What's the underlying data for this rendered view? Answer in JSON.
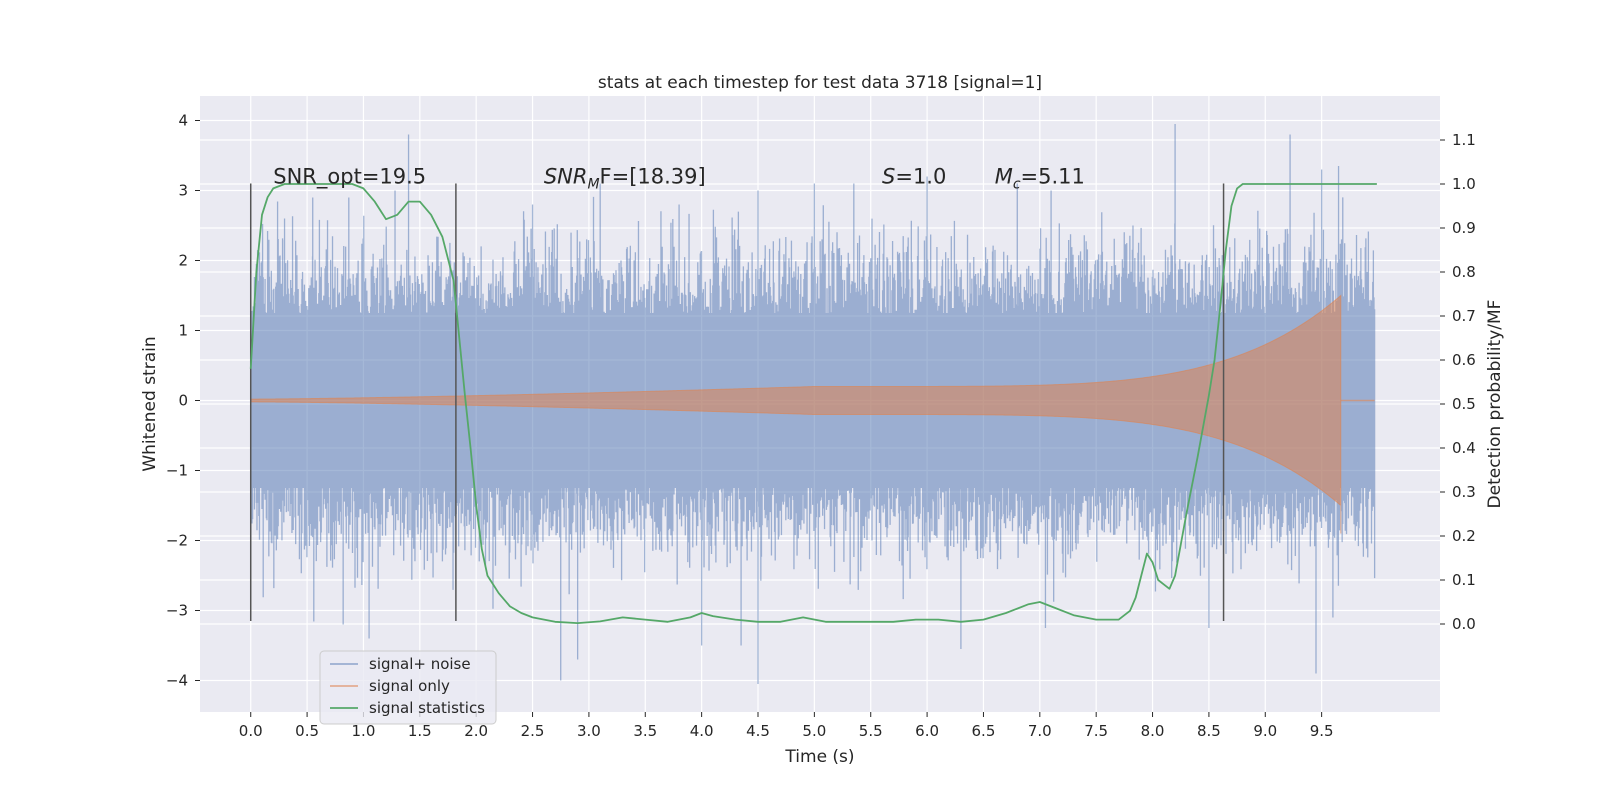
{
  "chart_data": {
    "type": "line",
    "title": "stats at each timestep for test data 3718 [signal=1]",
    "xlabel": "Time (s)",
    "ylabel": "Whitened strain",
    "y2label": "Detection probability/MF",
    "xlim": [
      -0.45,
      10.55
    ],
    "ylim": [
      -4.45,
      4.35
    ],
    "y2lim": [
      -0.2,
      1.2
    ],
    "xticks": [
      "0.0",
      "0.5",
      "1.0",
      "1.5",
      "2.0",
      "2.5",
      "3.0",
      "3.5",
      "4.0",
      "4.5",
      "5.0",
      "5.5",
      "6.0",
      "6.5",
      "7.0",
      "7.5",
      "8.0",
      "8.5",
      "9.0",
      "9.5"
    ],
    "xtick_values": [
      0,
      0.5,
      1,
      1.5,
      2,
      2.5,
      3,
      3.5,
      4,
      4.5,
      5,
      5.5,
      6,
      6.5,
      7,
      7.5,
      8,
      8.5,
      9,
      9.5
    ],
    "yticks": [
      "4",
      "3",
      "2",
      "1",
      "0",
      "−1",
      "−2",
      "−3",
      "−4"
    ],
    "ytick_values": [
      4,
      3,
      2,
      1,
      0,
      -1,
      -2,
      -3,
      -4
    ],
    "y2ticks": [
      "1.1",
      "1.0",
      "0.9",
      "0.8",
      "0.7",
      "0.6",
      "0.5",
      "0.4",
      "0.3",
      "0.2",
      "0.1",
      "0.0"
    ],
    "y2tick_values": [
      1.1,
      1.0,
      0.9,
      0.8,
      0.7,
      0.6,
      0.5,
      0.4,
      0.3,
      0.2,
      0.1,
      0.0
    ],
    "grid": true,
    "legend_position": "lower-left",
    "annotations": [
      {
        "prefix": "SNR_opt",
        "sub": "",
        "suffix": "=19.5",
        "x": 0.2,
        "y": 3.1
      },
      {
        "prefix": "SNR",
        "sub": "M",
        "suffix": "F=[18.39]",
        "x": 2.6,
        "y": 3.1
      },
      {
        "prefix": "S",
        "sub": "",
        "suffix": "=1.0",
        "x": 5.6,
        "y": 3.1
      },
      {
        "prefix": "M",
        "sub": "c",
        "suffix": "=5.11",
        "x": 6.6,
        "y": 3.1
      }
    ],
    "vlines": [
      {
        "x": 0.0,
        "ymin": -3.15,
        "ymax": 3.1
      },
      {
        "x": 1.82,
        "ymin": -3.15,
        "ymax": 3.1
      },
      {
        "x": 8.63,
        "ymin": -3.15,
        "ymax": 3.1
      }
    ],
    "series": [
      {
        "name": "signal+ noise",
        "kind": "noise_band",
        "color": "#4c72b0",
        "x_range": [
          0.0,
          9.97
        ],
        "core_min": -1.25,
        "core_max": 1.25,
        "peaks_top": [
          {
            "x": 0.3,
            "y": 2.6
          },
          {
            "x": 0.55,
            "y": 2.9
          },
          {
            "x": 0.87,
            "y": 2.9
          },
          {
            "x": 1.28,
            "y": 3.0
          },
          {
            "x": 1.4,
            "y": 3.8
          },
          {
            "x": 2.5,
            "y": 2.8
          },
          {
            "x": 3.1,
            "y": 3.1
          },
          {
            "x": 3.8,
            "y": 2.8
          },
          {
            "x": 4.5,
            "y": 3.0
          },
          {
            "x": 5.0,
            "y": 3.1
          },
          {
            "x": 5.35,
            "y": 3.1
          },
          {
            "x": 6.0,
            "y": 3.2
          },
          {
            "x": 6.8,
            "y": 3.1
          },
          {
            "x": 7.1,
            "y": 3.0
          },
          {
            "x": 8.2,
            "y": 3.95
          },
          {
            "x": 9.22,
            "y": 3.8
          },
          {
            "x": 9.5,
            "y": 3.3
          },
          {
            "x": 9.65,
            "y": 3.35
          }
        ],
        "peaks_bottom": [
          {
            "x": 0.82,
            "y": -3.2
          },
          {
            "x": 1.05,
            "y": -3.4
          },
          {
            "x": 2.75,
            "y": -4.0
          },
          {
            "x": 2.9,
            "y": -3.7
          },
          {
            "x": 4.0,
            "y": -3.5
          },
          {
            "x": 4.35,
            "y": -3.5
          },
          {
            "x": 4.5,
            "y": -4.05
          },
          {
            "x": 6.3,
            "y": -3.55
          },
          {
            "x": 7.05,
            "y": -3.25
          },
          {
            "x": 8.5,
            "y": -3.25
          },
          {
            "x": 9.45,
            "y": -3.9
          },
          {
            "x": 9.6,
            "y": -3.1
          }
        ]
      },
      {
        "name": "signal only",
        "kind": "chirp_envelope",
        "color": "#dd8452",
        "x_start": 0.0,
        "x_peak": 9.67,
        "amp_start": 0.02,
        "amp_mid": 0.2,
        "amp_mid_x": 5.0,
        "amp_peak": 1.5
      },
      {
        "name": "signal statistics",
        "kind": "line",
        "axis": "right",
        "color": "#55a868",
        "x": [
          0.0,
          0.05,
          0.1,
          0.15,
          0.2,
          0.3,
          0.5,
          0.7,
          0.9,
          1.0,
          1.1,
          1.2,
          1.3,
          1.4,
          1.5,
          1.6,
          1.7,
          1.8,
          1.85,
          1.9,
          1.95,
          2.0,
          2.05,
          2.1,
          2.15,
          2.2,
          2.3,
          2.4,
          2.5,
          2.7,
          2.9,
          3.1,
          3.3,
          3.5,
          3.7,
          3.9,
          4.0,
          4.1,
          4.3,
          4.5,
          4.7,
          4.9,
          5.1,
          5.3,
          5.5,
          5.7,
          5.9,
          6.1,
          6.3,
          6.5,
          6.7,
          6.9,
          7.0,
          7.1,
          7.3,
          7.5,
          7.7,
          7.8,
          7.85,
          7.9,
          7.95,
          8.0,
          8.05,
          8.1,
          8.15,
          8.2,
          8.3,
          8.4,
          8.5,
          8.55,
          8.6,
          8.65,
          8.7,
          8.75,
          8.8,
          8.9,
          9.0,
          9.5,
          9.99
        ],
        "y": [
          0.58,
          0.8,
          0.93,
          0.97,
          0.99,
          1.0,
          1.0,
          1.0,
          1.0,
          0.99,
          0.96,
          0.92,
          0.93,
          0.96,
          0.96,
          0.93,
          0.88,
          0.78,
          0.65,
          0.52,
          0.4,
          0.27,
          0.17,
          0.11,
          0.09,
          0.07,
          0.04,
          0.025,
          0.015,
          0.005,
          0.002,
          0.006,
          0.015,
          0.01,
          0.005,
          0.015,
          0.025,
          0.018,
          0.01,
          0.005,
          0.005,
          0.015,
          0.005,
          0.005,
          0.005,
          0.005,
          0.01,
          0.01,
          0.005,
          0.01,
          0.025,
          0.045,
          0.05,
          0.04,
          0.02,
          0.01,
          0.01,
          0.03,
          0.06,
          0.11,
          0.16,
          0.14,
          0.1,
          0.09,
          0.08,
          0.11,
          0.25,
          0.38,
          0.52,
          0.6,
          0.72,
          0.85,
          0.95,
          0.99,
          1.0,
          1.0,
          1.0,
          1.0,
          1.0
        ]
      }
    ]
  }
}
